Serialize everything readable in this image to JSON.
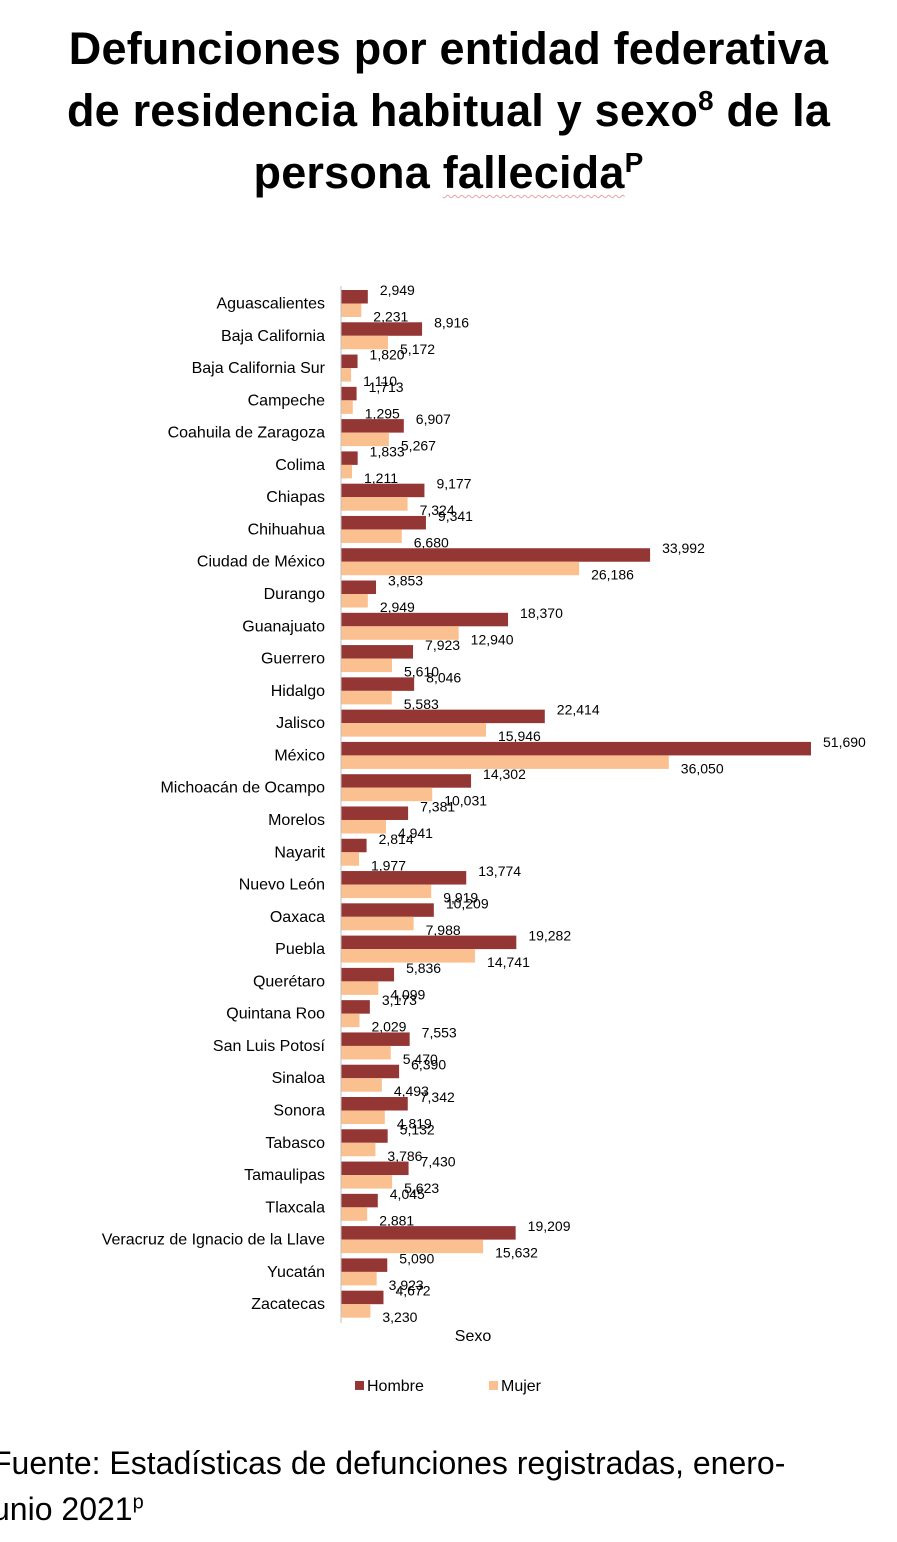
{
  "title": {
    "line1": "Defunciones por entidad federativa",
    "line2_a": "de residencia habitual y sexo",
    "line2_sup": "8",
    "line2_b": " de la",
    "line3_a": "persona ",
    "line3_b": "fallecida",
    "line3_sup": "P"
  },
  "chart_data": {
    "type": "bar",
    "orientation": "horizontal",
    "categories": [
      "Aguascalientes",
      "Baja California",
      "Baja California Sur",
      "Campeche",
      "Coahuila de Zaragoza",
      "Colima",
      "Chiapas",
      "Chihuahua",
      "Ciudad de México",
      "Durango",
      "Guanajuato",
      "Guerrero",
      "Hidalgo",
      "Jalisco",
      "México",
      "Michoacán de Ocampo",
      "Morelos",
      "Nayarit",
      "Nuevo León",
      "Oaxaca",
      "Puebla",
      "Querétaro",
      "Quintana Roo",
      "San Luis Potosí",
      "Sinaloa",
      "Sonora",
      "Tabasco",
      "Tamaulipas",
      "Tlaxcala",
      "Veracruz de Ignacio de la Llave",
      "Yucatán",
      "Zacatecas"
    ],
    "series": [
      {
        "name": "Hombre",
        "color": "#943634",
        "values": [
          2949,
          8916,
          1820,
          1713,
          6907,
          1833,
          9177,
          9341,
          33992,
          3853,
          18370,
          7923,
          8046,
          22414,
          51690,
          14302,
          7381,
          2814,
          13774,
          10209,
          19282,
          5836,
          3173,
          7553,
          6390,
          7342,
          5132,
          7430,
          4045,
          19209,
          5090,
          4672
        ],
        "labels": [
          "2,949",
          "8,916",
          "1,820",
          "1,713",
          "6,907",
          "1,833",
          "9,177",
          "9,341",
          "33,992",
          "3,853",
          "18,370",
          "7,923",
          "8,046",
          "22,414",
          "51,690",
          "14,302",
          "7,381",
          "2,814",
          "13,774",
          "10,209",
          "19,282",
          "5,836",
          "3,173",
          "7,553",
          "6,390",
          "7,342",
          "5,132",
          "7,430",
          "4,045",
          "19,209",
          "5,090",
          "4,672"
        ]
      },
      {
        "name": "Mujer",
        "color": "#fac090",
        "values": [
          2231,
          5172,
          1110,
          1295,
          5267,
          1211,
          7324,
          6680,
          26186,
          2949,
          12940,
          5610,
          5583,
          15946,
          36050,
          10031,
          4941,
          1977,
          9919,
          7988,
          14741,
          4099,
          2029,
          5470,
          4493,
          4819,
          3786,
          5623,
          2881,
          15632,
          3923,
          3230
        ],
        "labels": [
          "2,231",
          "5,172",
          "1,110",
          "1,295",
          "5,267",
          "1,211",
          "7,324",
          "6,680",
          "26,186",
          "2,949",
          "12,940",
          "5,610",
          "5,583",
          "15,946",
          "36,050",
          "10,031",
          "4,941",
          "1,977",
          "9,919",
          "7,988",
          "14,741",
          "4,099",
          "2,029",
          "5,470",
          "4,493",
          "4,819",
          "3,786",
          "5,623",
          "2,881",
          "15,632",
          "3,923",
          "3,230"
        ]
      }
    ],
    "xlabel": "Sexo",
    "xlim": [
      0,
      51690
    ],
    "grid": false,
    "legend_position": "bottom"
  },
  "footer": {
    "text": "Fuente: Estadísticas de defunciones registradas, enero-",
    "line2": "unio 2021",
    "line2_sup": "p"
  }
}
